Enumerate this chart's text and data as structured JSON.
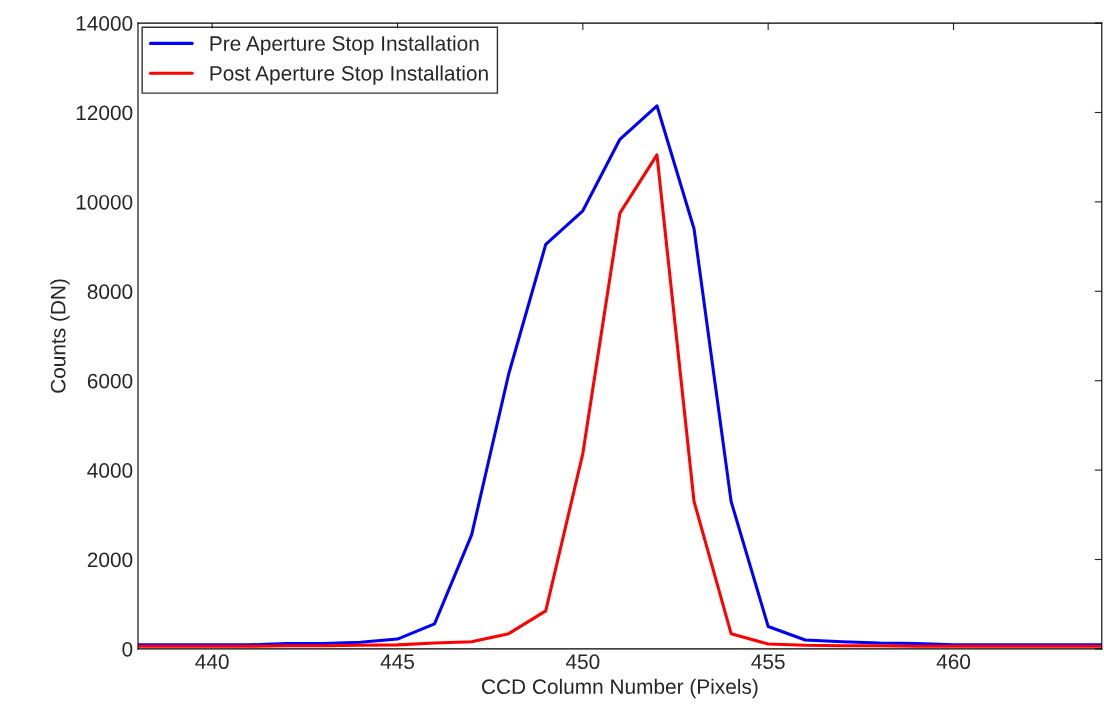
{
  "chart_data": {
    "type": "line",
    "xlabel": "CCD Column Number (Pixels)",
    "ylabel": "Counts (DN)",
    "x": [
      438,
      439,
      440,
      441,
      442,
      443,
      444,
      445,
      446,
      447,
      448,
      449,
      450,
      451,
      452,
      453,
      454,
      455,
      456,
      457,
      458,
      459,
      460,
      461,
      462,
      463,
      464
    ],
    "series": [
      {
        "name": "Pre Aperture Stop Installation",
        "color": "#0000ff",
        "values": [
          90,
          90,
          90,
          90,
          120,
          120,
          150,
          220,
          560,
          2550,
          6150,
          9050,
          9800,
          11400,
          12150,
          9400,
          3300,
          500,
          200,
          160,
          130,
          120,
          90,
          90,
          90,
          90,
          90
        ]
      },
      {
        "name": "Post Aperture Stop Installation",
        "color": "#ff0000",
        "values": [
          60,
          60,
          60,
          60,
          70,
          70,
          80,
          90,
          130,
          160,
          340,
          850,
          4370,
          9750,
          11050,
          3300,
          340,
          110,
          80,
          70,
          70,
          60,
          60,
          60,
          60,
          60,
          60
        ]
      }
    ],
    "xlim": [
      438,
      464
    ],
    "xticks": [
      440,
      445,
      450,
      455,
      460
    ],
    "ylim": [
      0,
      14000
    ],
    "yticks": [
      0,
      2000,
      4000,
      6000,
      8000,
      10000,
      12000,
      14000
    ],
    "grid": false,
    "legend": "top left",
    "line_style": "solid",
    "marker": "none"
  }
}
